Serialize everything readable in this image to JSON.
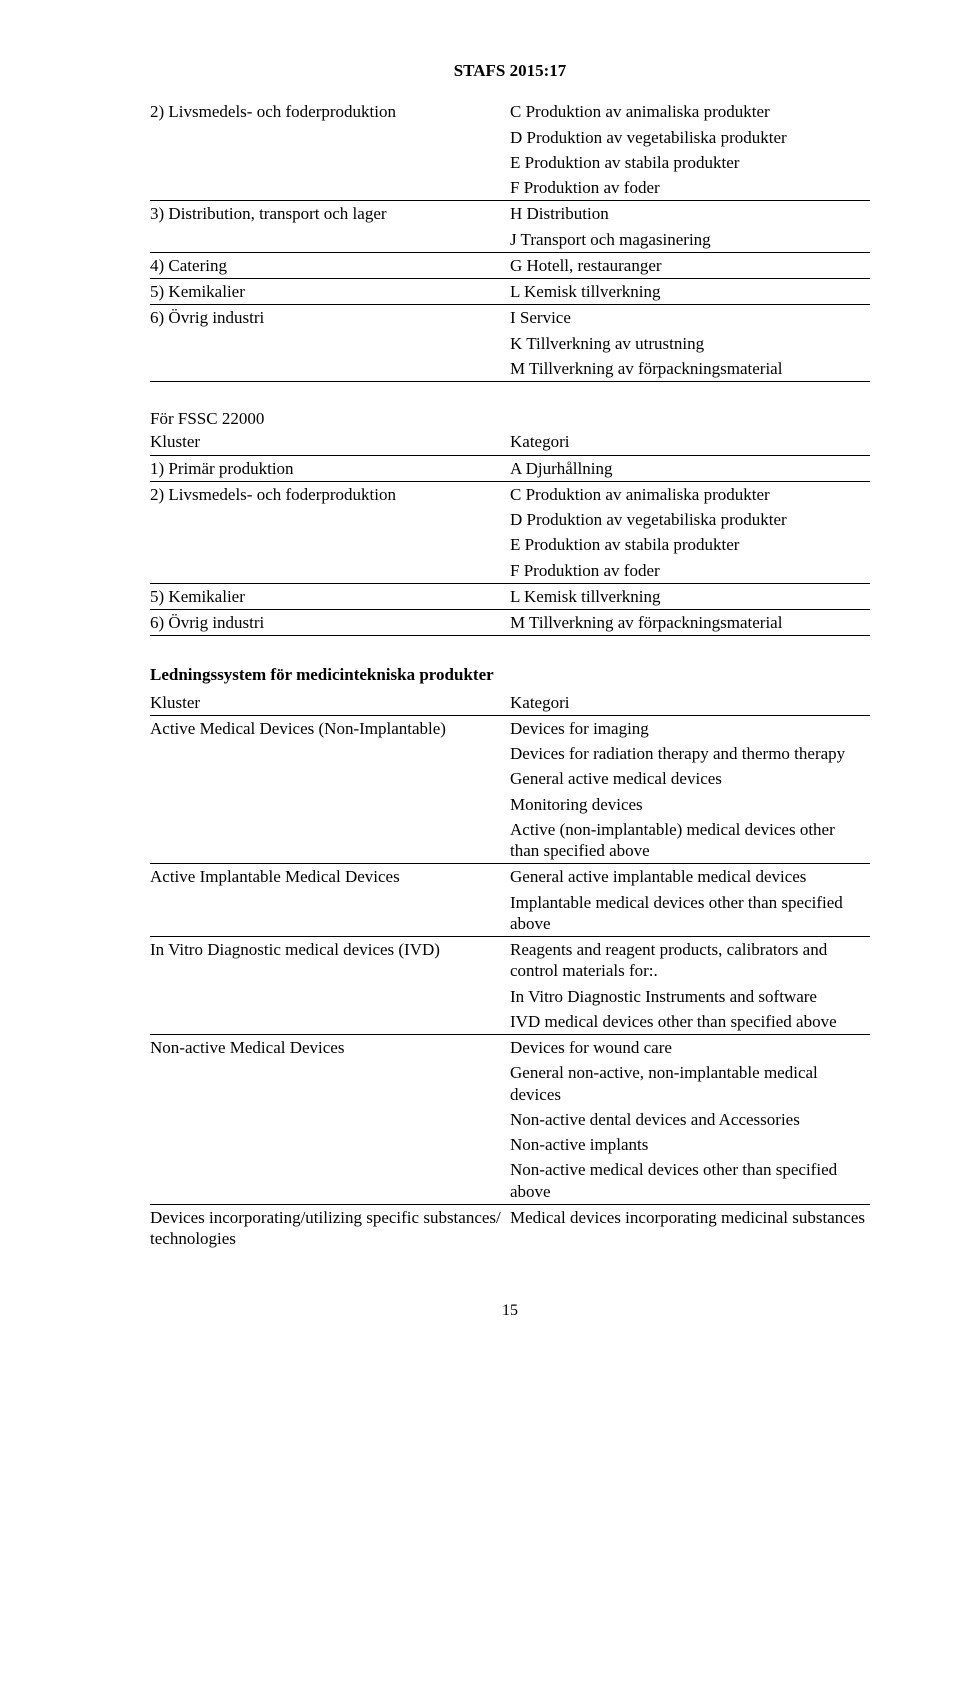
{
  "docTitle": "STAFS 2015:17",
  "pageNumber": "15",
  "table1": [
    {
      "left": "2) Livsmedels- och foderproduktion",
      "right": "C Produktion av animaliska produkter",
      "sep": false
    },
    {
      "left": "",
      "right": "D Produktion av vegetabiliska produkter",
      "sep": false
    },
    {
      "left": "",
      "right": "E Produktion av stabila produkter",
      "sep": false
    },
    {
      "left": "",
      "right": "F Produktion av foder",
      "sep": true
    },
    {
      "left": "3) Distribution, transport och lager",
      "right": "H Distribution",
      "sep": false
    },
    {
      "left": "",
      "right": "J Transport och magasinering",
      "sep": true
    },
    {
      "left": "4) Catering",
      "right": "G Hotell, restauranger",
      "sep": true
    },
    {
      "left": "5) Kemikalier",
      "right": "L Kemisk tillverkning",
      "sep": true
    },
    {
      "left": "6) Övrig industri",
      "right": "I Service",
      "sep": false
    },
    {
      "left": "",
      "right": "K Tillverkning av utrustning",
      "sep": false
    },
    {
      "left": "",
      "right": "M Tillverkning av förpackningsmaterial",
      "sep": true
    }
  ],
  "fssc_heading": "För FSSC 22000",
  "table2": [
    {
      "left": "Kluster",
      "right": "Kategori",
      "sep": true
    },
    {
      "left": "1) Primär produktion",
      "right": "A Djurhållning",
      "sep": true
    },
    {
      "left": "2) Livsmedels- och foderproduktion",
      "right": "C Produktion av animaliska produkter",
      "sep": false
    },
    {
      "left": "",
      "right": "D Produktion av vegetabiliska produkter",
      "sep": false
    },
    {
      "left": "",
      "right": "E Produktion av stabila produkter",
      "sep": false
    },
    {
      "left": "",
      "right": "F Produktion av foder",
      "sep": true
    },
    {
      "left": "5) Kemikalier",
      "right": "L Kemisk tillverkning",
      "sep": true
    },
    {
      "left": "6) Övrig industri",
      "right": "M Tillverkning av förpackningsmaterial",
      "sep": true
    }
  ],
  "med_heading": "Ledningssystem för medicintekniska produkter",
  "table3": [
    {
      "left": "Kluster",
      "right": "Kategori",
      "sep": true
    },
    {
      "left": "Active Medical Devices (Non-Implantable)",
      "right": "Devices for imaging",
      "sep": false
    },
    {
      "left": "",
      "right": "Devices for radiation therapy and thermo therapy",
      "sep": false
    },
    {
      "left": "",
      "right": "General active medical devices",
      "sep": false
    },
    {
      "left": "",
      "right": "Monitoring devices",
      "sep": false
    },
    {
      "left": "",
      "right": "Active (non-implantable) medical devices other than specified above",
      "sep": true
    },
    {
      "left": "Active Implantable Medical Devices",
      "right": "General active implantable medical devices",
      "sep": false
    },
    {
      "left": "",
      "right": "Implantable medical devices other than specified above",
      "sep": true
    },
    {
      "left": "In Vitro Diagnostic medical devices (IVD)",
      "right": "Reagents and reagent products, calibrators and control materials for:.",
      "sep": false
    },
    {
      "left": "",
      "right": "In Vitro Diagnostic Instruments and software",
      "sep": false
    },
    {
      "left": "",
      "right": "IVD medical devices other than specified above",
      "sep": true
    },
    {
      "left": "Non-active Medical Devices",
      "right": "Devices for wound care",
      "sep": false
    },
    {
      "left": "",
      "right": "General non-active, non-implantable medical devices",
      "sep": false
    },
    {
      "left": "",
      "right": "Non-active dental devices and Accessories",
      "sep": false
    },
    {
      "left": "",
      "right": "Non-active implants",
      "sep": false
    },
    {
      "left": "",
      "right": "Non-active medical devices other than specified above",
      "sep": true
    },
    {
      "left": "Devices incorporating/utilizing specific substances/ technologies",
      "right": "Medical devices incorporating medicinal substances",
      "sep": false
    }
  ]
}
